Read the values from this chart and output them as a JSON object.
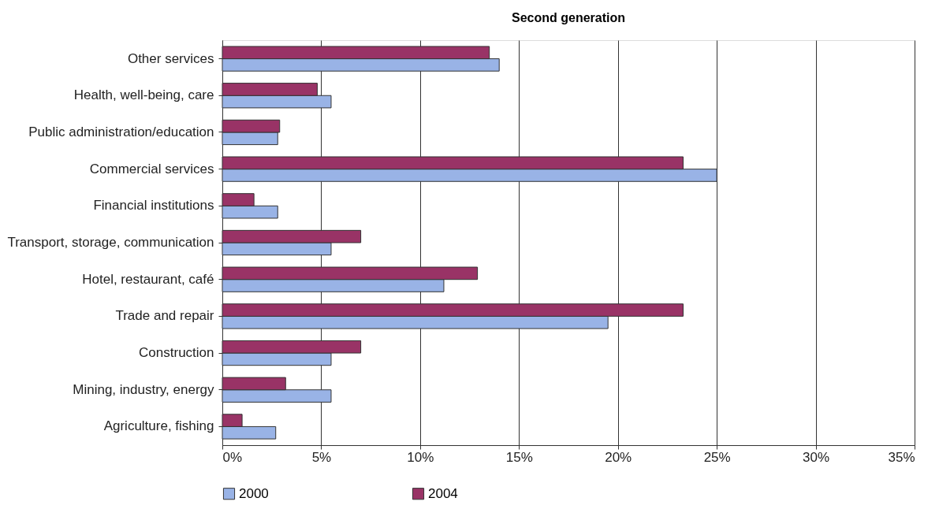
{
  "chart_data": {
    "type": "bar",
    "orientation": "horizontal",
    "title": "Second generation",
    "categories": [
      "Other services",
      "Health, well-being, care",
      "Public administration/education",
      "Commercial services",
      "Financial institutions",
      "Transport, storage, communication",
      "Hotel, restaurant, café",
      "Trade and repair",
      "Construction",
      "Mining, industry, energy",
      "Agriculture, fishing"
    ],
    "series": [
      {
        "name": "2000",
        "color": "#99b3e6",
        "values": [
          14,
          5.5,
          2.8,
          25,
          2.8,
          5.5,
          11.2,
          19.5,
          5.5,
          5.5,
          2.7
        ]
      },
      {
        "name": "2004",
        "color": "#993366",
        "values": [
          13.5,
          4.8,
          2.9,
          23.3,
          1.6,
          7,
          12.9,
          23.3,
          7,
          3.2,
          1
        ]
      }
    ],
    "xlim": [
      0,
      35
    ],
    "xticks": [
      {
        "value": 0,
        "label": "0%"
      },
      {
        "value": 5,
        "label": "5%"
      },
      {
        "value": 10,
        "label": "10%"
      },
      {
        "value": 15,
        "label": "15%"
      },
      {
        "value": 20,
        "label": "20%"
      },
      {
        "value": 25,
        "label": "25%"
      },
      {
        "value": 30,
        "label": "30%"
      },
      {
        "value": 35,
        "label": "35%"
      }
    ],
    "grid": "x",
    "legend": "bottom"
  }
}
